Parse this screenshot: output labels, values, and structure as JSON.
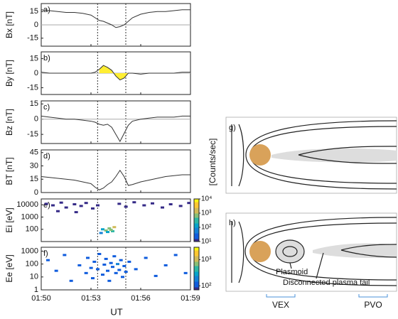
{
  "chart_data": [
    {
      "type": "line",
      "panel_label": "a)",
      "ylabel": "Bx [nT]",
      "ylim": [
        -24,
        24
      ],
      "yticks": [
        -15,
        0,
        15
      ],
      "zero_line": true,
      "x": [
        0,
        0.5,
        1,
        1.5,
        2,
        2.5,
        3,
        3.25,
        3.5,
        3.75,
        4,
        4.25,
        4.5,
        4.75,
        5,
        5.25,
        5.5,
        6,
        6.5,
        7,
        7.5,
        8,
        8.5,
        9
      ],
      "series": [
        {
          "color": "#333",
          "values": [
            17,
            16,
            15,
            14,
            14,
            13,
            11,
            8,
            5,
            4,
            2,
            0,
            -3,
            -2,
            0,
            4,
            8,
            12,
            14,
            15,
            15,
            16,
            17,
            17
          ]
        }
      ]
    },
    {
      "type": "line",
      "panel_label": "b)",
      "ylabel": "By [nT]",
      "ylim": [
        -22,
        22
      ],
      "yticks": [
        -15,
        0,
        15
      ],
      "zero_line": true,
      "fill_color": "#ffee33",
      "fill_range": [
        3.5,
        5.25
      ],
      "x": [
        0,
        0.5,
        1,
        1.5,
        2,
        2.5,
        3,
        3.25,
        3.5,
        3.75,
        4,
        4.25,
        4.5,
        4.75,
        5,
        5.25,
        5.5,
        6,
        6.5,
        7,
        7.5,
        8,
        8.5,
        9
      ],
      "series": [
        {
          "color": "#333",
          "values": [
            1,
            0,
            0,
            0,
            0,
            0,
            0,
            1,
            4,
            8,
            6,
            3,
            -3,
            -7,
            -5,
            0,
            0,
            -1,
            0,
            0,
            0,
            0,
            1,
            1
          ]
        }
      ]
    },
    {
      "type": "line",
      "panel_label": "c)",
      "ylabel": "Bz [nT]",
      "ylim": [
        -24,
        18
      ],
      "yticks": [
        -15,
        0,
        15
      ],
      "zero_line": true,
      "x": [
        0,
        0.5,
        1,
        1.5,
        2,
        2.5,
        3,
        3.25,
        3.5,
        3.75,
        4,
        4.25,
        4.5,
        4.75,
        5,
        5.25,
        5.5,
        6,
        6.5,
        7,
        7.5,
        8,
        8.5,
        9
      ],
      "series": [
        {
          "color": "#333",
          "values": [
            3,
            2,
            1,
            0,
            0,
            -1,
            -2,
            -3,
            -5,
            -6,
            -5,
            -8,
            -15,
            -22,
            -14,
            -6,
            -2,
            0,
            1,
            2,
            2,
            2,
            3,
            3
          ]
        }
      ]
    },
    {
      "type": "line",
      "panel_label": "d)",
      "ylabel": "BT [nT]",
      "ylim": [
        0,
        48
      ],
      "yticks": [
        0,
        15,
        30,
        45
      ],
      "zero_line": false,
      "x": [
        0,
        0.5,
        1,
        1.5,
        2,
        2.5,
        3,
        3.25,
        3.5,
        3.75,
        4,
        4.25,
        4.5,
        4.75,
        5,
        5.25,
        5.5,
        6,
        6.5,
        7,
        7.5,
        8,
        8.5,
        9
      ],
      "series": [
        {
          "color": "#333",
          "values": [
            18,
            17,
            16,
            15,
            14,
            12,
            10,
            6,
            3,
            5,
            9,
            12,
            18,
            25,
            18,
            8,
            9,
            12,
            14,
            16,
            18,
            19,
            20,
            20
          ]
        }
      ]
    },
    {
      "type": "heatmap",
      "panel_label": "e)",
      "ylabel": "Ei [eV]",
      "log": true,
      "ylim": [
        10,
        30000
      ],
      "yticks": [
        100,
        1000,
        10000
      ],
      "clim": [
        10,
        10000
      ],
      "cticks": [
        {
          "value": 10,
          "label": "10¹"
        },
        {
          "value": 100,
          "label": "10²"
        },
        {
          "value": 1000,
          "label": "10³"
        },
        {
          "value": 10000,
          "label": "10⁴"
        }
      ],
      "clabel": "[Counts/sec]",
      "cells": [
        [
          0.2,
          12000,
          12
        ],
        [
          0.6,
          9000,
          10
        ],
        [
          1.1,
          15000,
          15
        ],
        [
          1.4,
          6000,
          11
        ],
        [
          1.9,
          11000,
          12
        ],
        [
          2.3,
          8000,
          10
        ],
        [
          2.6,
          14000,
          13
        ],
        [
          3.0,
          5000,
          10
        ],
        [
          3.3,
          9000,
          12
        ],
        [
          4.6,
          12000,
          15
        ],
        [
          5.0,
          7000,
          10
        ],
        [
          5.5,
          16000,
          12
        ],
        [
          6.1,
          9000,
          11
        ],
        [
          6.6,
          13000,
          10
        ],
        [
          7.2,
          6000,
          12
        ],
        [
          7.7,
          11000,
          13
        ],
        [
          8.3,
          8000,
          10
        ],
        [
          8.8,
          14000,
          11
        ],
        [
          0.9,
          3000,
          10
        ],
        [
          2.0,
          2500,
          11
        ],
        [
          3.6,
          100,
          200
        ],
        [
          3.8,
          80,
          500
        ],
        [
          4.0,
          120,
          1000
        ],
        [
          4.2,
          70,
          300
        ],
        [
          4.3,
          150,
          2000
        ],
        [
          3.9,
          60,
          150
        ],
        [
          3.5,
          50,
          40
        ],
        [
          4.1,
          90,
          800
        ]
      ]
    },
    {
      "type": "heatmap",
      "panel_label": "f)",
      "ylabel": "Ee [eV]",
      "log": true,
      "ylim": [
        1,
        2000
      ],
      "yticks": [
        1,
        10,
        100,
        1000
      ],
      "clim": [
        70,
        3000
      ],
      "cticks": [
        {
          "value": 100,
          "label": "10²"
        },
        {
          "value": 1000,
          "label": "10³"
        }
      ],
      "cells": [
        [
          0.3,
          200,
          100
        ],
        [
          0.8,
          30,
          90
        ],
        [
          1.3,
          500,
          110
        ],
        [
          1.7,
          5,
          90
        ],
        [
          2.2,
          80,
          100
        ],
        [
          2.6,
          20,
          120
        ],
        [
          2.7,
          300,
          100
        ],
        [
          2.9,
          50,
          130
        ],
        [
          3.0,
          8,
          100
        ],
        [
          3.1,
          150,
          110
        ],
        [
          3.3,
          40,
          120
        ],
        [
          3.4,
          600,
          100
        ],
        [
          3.6,
          15,
          140
        ],
        [
          3.7,
          90,
          110
        ],
        [
          3.8,
          250,
          100
        ],
        [
          3.9,
          30,
          130
        ],
        [
          4.0,
          5,
          100
        ],
        [
          4.1,
          120,
          140
        ],
        [
          4.2,
          60,
          110
        ],
        [
          4.3,
          400,
          100
        ],
        [
          4.4,
          20,
          120
        ],
        [
          4.5,
          100,
          150
        ],
        [
          4.6,
          35,
          110
        ],
        [
          4.7,
          200,
          100
        ],
        [
          4.8,
          10,
          120
        ],
        [
          4.9,
          70,
          110
        ],
        [
          5.0,
          25,
          100
        ],
        [
          5.2,
          150,
          90
        ],
        [
          5.6,
          40,
          100
        ],
        [
          6.2,
          300,
          90
        ],
        [
          6.8,
          12,
          100
        ],
        [
          7.4,
          80,
          90
        ],
        [
          8.0,
          500,
          100
        ],
        [
          8.6,
          20,
          90
        ]
      ]
    }
  ],
  "vlines": [
    3.4,
    5.1
  ],
  "xlim": [
    0,
    9
  ],
  "xticks": [
    {
      "value": 0,
      "label": "01:50"
    },
    {
      "value": 3,
      "label": "01:53"
    },
    {
      "value": 6,
      "label": "01:56"
    },
    {
      "value": 9,
      "label": "01:59"
    }
  ],
  "xlabel": "UT",
  "diagram": {
    "g_label": "g)",
    "h_label": "h)",
    "plasmoid": "Plasmoid",
    "tail": "Disconnected plasma tail",
    "vex": "VEX",
    "pvo": "PVO"
  }
}
